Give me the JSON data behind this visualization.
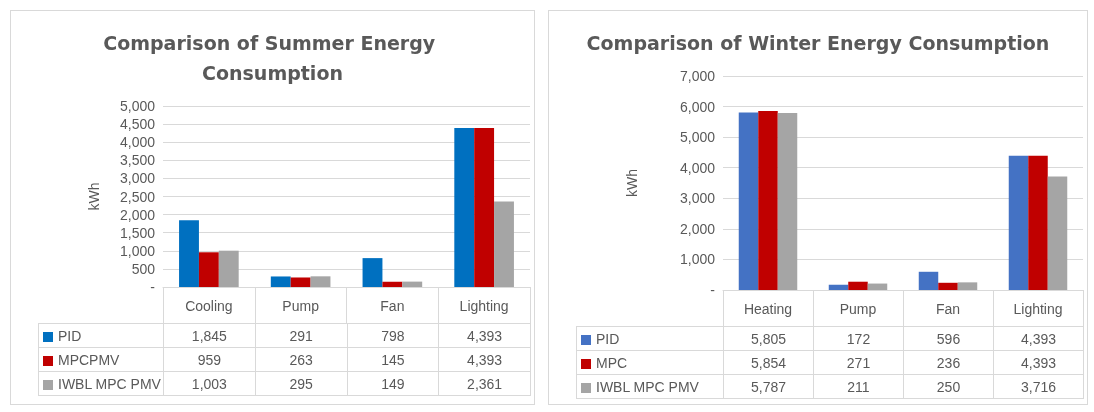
{
  "chart_data": [
    {
      "type": "bar",
      "title": "Comparison of Summer Energy Consumption",
      "ylabel": "kWh",
      "categories": [
        "Cooling",
        "Pump",
        "Fan",
        "Lighting"
      ],
      "series": [
        {
          "name": "PID",
          "color": "#0070c0",
          "values": [
            1845,
            291,
            798,
            4393
          ],
          "value_labels": [
            "1,845",
            "291",
            "798",
            "4,393"
          ]
        },
        {
          "name": "MPCPMV",
          "color": "#c00000",
          "values": [
            959,
            263,
            145,
            4393
          ],
          "value_labels": [
            "959",
            "263",
            "145",
            "4,393"
          ]
        },
        {
          "name": "IWBL MPC PMV",
          "color": "#a5a5a5",
          "values": [
            1003,
            295,
            149,
            2361
          ],
          "value_labels": [
            "1,003",
            "295",
            "149",
            "2,361"
          ]
        }
      ],
      "ylim": [
        0,
        5000
      ],
      "yticks": [
        {
          "value": 0,
          "label": "-"
        },
        {
          "value": 500,
          "label": "500"
        },
        {
          "value": 1000,
          "label": "1,000"
        },
        {
          "value": 1500,
          "label": "1,500"
        },
        {
          "value": 2000,
          "label": "2,000"
        },
        {
          "value": 2500,
          "label": "2,500"
        },
        {
          "value": 3000,
          "label": "3,000"
        },
        {
          "value": 3500,
          "label": "3,500"
        },
        {
          "value": 4000,
          "label": "4,000"
        },
        {
          "value": 4500,
          "label": "4,500"
        },
        {
          "value": 5000,
          "label": "5,000"
        }
      ],
      "grid": "y",
      "legend": "bottom"
    },
    {
      "type": "bar",
      "title": "Comparison of Winter Energy Consumption",
      "ylabel": "kWh",
      "categories": [
        "Heating",
        "Pump",
        "Fan",
        "Lighting"
      ],
      "series": [
        {
          "name": "PID",
          "color": "#4472c4",
          "values": [
            5805,
            172,
            596,
            4393
          ],
          "value_labels": [
            "5,805",
            "172",
            "596",
            "4,393"
          ]
        },
        {
          "name": "MPC",
          "color": "#c00000",
          "values": [
            5854,
            271,
            236,
            4393
          ],
          "value_labels": [
            "5,854",
            "271",
            "236",
            "4,393"
          ]
        },
        {
          "name": "IWBL MPC PMV",
          "color": "#a5a5a5",
          "values": [
            5787,
            211,
            250,
            3716
          ],
          "value_labels": [
            "5,787",
            "211",
            "250",
            "3,716"
          ]
        }
      ],
      "ylim": [
        0,
        7000
      ],
      "yticks": [
        {
          "value": 0,
          "label": "-"
        },
        {
          "value": 1000,
          "label": "1,000"
        },
        {
          "value": 2000,
          "label": "2,000"
        },
        {
          "value": 3000,
          "label": "3,000"
        },
        {
          "value": 4000,
          "label": "4,000"
        },
        {
          "value": 5000,
          "label": "5,000"
        },
        {
          "value": 6000,
          "label": "6,000"
        },
        {
          "value": 7000,
          "label": "7,000"
        }
      ],
      "grid": "y",
      "legend": "bottom"
    }
  ]
}
